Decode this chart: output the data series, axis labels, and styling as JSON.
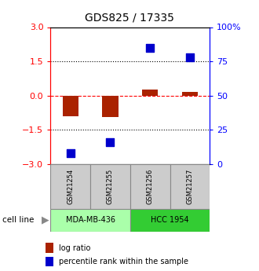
{
  "title": "GDS825 / 17335",
  "samples": [
    "GSM21254",
    "GSM21255",
    "GSM21256",
    "GSM21257"
  ],
  "log_ratio": [
    -0.9,
    -0.95,
    0.25,
    0.15
  ],
  "percentile_rank": [
    8,
    16,
    85,
    78
  ],
  "cell_lines": [
    {
      "label": "MDA-MB-436",
      "samples": [
        0,
        1
      ],
      "color": "#aaffaa"
    },
    {
      "label": "HCC 1954",
      "samples": [
        2,
        3
      ],
      "color": "#33cc33"
    }
  ],
  "left_ylim": [
    -3,
    3
  ],
  "right_ylim": [
    0,
    100
  ],
  "left_yticks": [
    -3,
    -1.5,
    0,
    1.5,
    3
  ],
  "right_yticks": [
    0,
    25,
    50,
    75,
    100
  ],
  "right_yticklabels": [
    "0",
    "25",
    "50",
    "75",
    "100%"
  ],
  "bar_color": "#aa2200",
  "dot_color": "#0000cc",
  "bar_width": 0.4,
  "dot_size": 45,
  "cell_line_label": "cell line",
  "legend_items": [
    {
      "color": "#aa2200",
      "label": "log ratio"
    },
    {
      "color": "#0000cc",
      "label": "percentile rank within the sample"
    }
  ],
  "sample_box_color": "#cccccc",
  "fig_bg": "#ffffff"
}
